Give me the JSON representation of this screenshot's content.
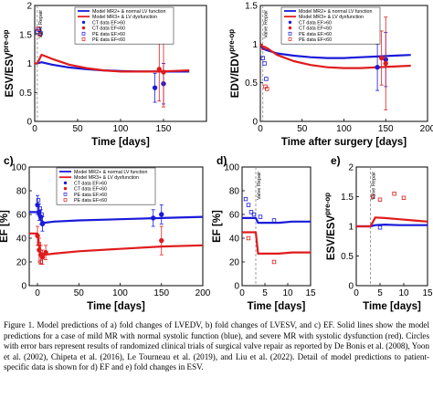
{
  "colors": {
    "blue": "#1a1ad9",
    "red": "#e01b1b",
    "grey_band": "#f3c9c9",
    "axis": "#000000"
  },
  "caption": "Figure 1. Model predictions of a) fold changes of LVEDV, b) fold changes of LVESV, and c) EF. Solid lines show the model predictions for a case of mild MR with normal systolic function (blue), and severe MR with systolic dysfunction (red). Circles with error bars represent results of randomized clinical trials of surgical valve repair as reported by De Bonis et al. (2008), Yoon et al. (2002), Chipeta et al. (2016), Le Tourneau et al. (2019), and Liu et al. (2022). Detail of model predictions to patient-specific data is shown for d) EF and e) fold changes in ESV.",
  "chart_data": [
    {
      "id": "a",
      "type": "line",
      "panel_label": "",
      "xlabel": "Time [days]",
      "ylabel": "ESV/ESV",
      "ylabel_sub": "pre-op",
      "xlim": [
        0,
        200
      ],
      "ylim": [
        0,
        2
      ],
      "xticks": [
        0,
        50,
        100,
        150
      ],
      "yticks": [
        0,
        0.5,
        1,
        1.5,
        2
      ],
      "ytick_labels": [
        "0",
        "0.5",
        "1",
        "1.5",
        "2"
      ],
      "vline": {
        "x": 3,
        "label": "Valve Repair"
      },
      "legend": [
        "Model MR2+ & normal LV function",
        "Model MR3+ & LV dysfunction",
        "CT data EF>60",
        "CT data EF<60",
        "PE data EF>60",
        "PE data EF<60"
      ],
      "series": [
        {
          "name": "Model MR2+ & normal LV function",
          "color": "blue",
          "kind": "line",
          "x": [
            0,
            3,
            8,
            20,
            40,
            60,
            80,
            100,
            120,
            140,
            160,
            180
          ],
          "y": [
            1.0,
            1.0,
            1.02,
            0.98,
            0.93,
            0.9,
            0.88,
            0.87,
            0.86,
            0.86,
            0.86,
            0.86
          ]
        },
        {
          "name": "Model MR3+ & LV dysfunction",
          "color": "red",
          "kind": "line",
          "x": [
            0,
            3,
            8,
            20,
            40,
            60,
            80,
            100,
            120,
            140,
            160,
            180
          ],
          "y": [
            1.0,
            1.0,
            1.15,
            1.08,
            0.98,
            0.92,
            0.88,
            0.86,
            0.86,
            0.86,
            0.87,
            0.88
          ]
        },
        {
          "name": "CT data EF>60",
          "color": "blue",
          "kind": "points",
          "marker": "filled",
          "x": [
            140,
            150
          ],
          "y": [
            0.58,
            0.65
          ],
          "err": [
            0.25,
            0.35
          ]
        },
        {
          "name": "CT data EF<60",
          "color": "red",
          "kind": "points",
          "marker": "filled",
          "x": [
            145,
            150
          ],
          "y": [
            0.9,
            0.85
          ],
          "err": [
            0.55,
            0.6
          ]
        },
        {
          "name": "PE data EF>60",
          "color": "blue",
          "kind": "points",
          "marker": "open",
          "x": [
            3,
            5,
            7
          ],
          "y": [
            1.55,
            1.58,
            1.52
          ]
        },
        {
          "name": "PE data EF<60",
          "color": "red",
          "kind": "points",
          "marker": "open",
          "x": [
            4,
            6
          ],
          "y": [
            1.6,
            1.5
          ]
        }
      ]
    },
    {
      "id": "b",
      "type": "line",
      "panel_label": "",
      "xlabel": "Time after surgery [days]",
      "ylabel": "EDV/EDV",
      "ylabel_sub": "pre-op",
      "xlim": [
        0,
        200
      ],
      "ylim": [
        0,
        1.5
      ],
      "xticks": [
        0,
        50,
        100,
        150,
        200
      ],
      "yticks": [
        0,
        0.5,
        1,
        1.5
      ],
      "ytick_labels": [
        "0",
        "0.5",
        "1",
        "1.5"
      ],
      "vline": {
        "x": 3,
        "label": "Valve Repair"
      },
      "legend": [
        "Model MR2+ & normal LV function",
        "Model MR3+ & LV dysfunction",
        "CT data EF>60",
        "CT data EF<60",
        "PE data EF>60",
        "PE data EF<60"
      ],
      "series": [
        {
          "name": "Model MR2+ & normal LV function",
          "color": "blue",
          "kind": "line",
          "x": [
            0,
            3,
            8,
            20,
            40,
            60,
            80,
            100,
            120,
            140,
            160,
            180
          ],
          "y": [
            1.0,
            0.94,
            0.92,
            0.88,
            0.85,
            0.83,
            0.82,
            0.82,
            0.83,
            0.84,
            0.85,
            0.86
          ]
        },
        {
          "name": "Model MR3+ & LV dysfunction",
          "color": "red",
          "kind": "line",
          "x": [
            0,
            3,
            8,
            20,
            40,
            60,
            80,
            100,
            120,
            140,
            160,
            180
          ],
          "y": [
            1.0,
            0.97,
            0.95,
            0.86,
            0.78,
            0.73,
            0.7,
            0.69,
            0.69,
            0.7,
            0.71,
            0.72
          ]
        },
        {
          "name": "CT data EF>60",
          "color": "blue",
          "kind": "points",
          "marker": "filled",
          "x": [
            140,
            150
          ],
          "y": [
            0.7,
            0.8
          ],
          "err": [
            0.3,
            0.35
          ]
        },
        {
          "name": "CT data EF<60",
          "color": "red",
          "kind": "points",
          "marker": "filled",
          "x": [
            145,
            150
          ],
          "y": [
            0.82,
            0.75
          ],
          "err": [
            0.35,
            0.6
          ]
        },
        {
          "name": "PE data EF>60",
          "color": "blue",
          "kind": "points",
          "marker": "open",
          "x": [
            3,
            5,
            7
          ],
          "y": [
            0.82,
            0.75,
            0.55
          ]
        },
        {
          "name": "PE data EF<60",
          "color": "red",
          "kind": "points",
          "marker": "open",
          "x": [
            4,
            6,
            8
          ],
          "y": [
            0.95,
            0.45,
            0.42
          ]
        }
      ]
    },
    {
      "id": "c",
      "type": "line",
      "panel_label": "c)",
      "xlabel": "Time [days]",
      "ylabel": "EF [%]",
      "ylabel_sub": "",
      "xlim": [
        -10,
        200
      ],
      "ylim": [
        0,
        100
      ],
      "xticks": [
        0,
        50,
        100,
        150,
        200
      ],
      "yticks": [
        0,
        20,
        40,
        60,
        80,
        100
      ],
      "ytick_labels": [
        "0",
        "20",
        "40",
        "60",
        "80",
        "100"
      ],
      "vline": null,
      "legend": [
        "Model MR2+ & normal LV function",
        "Model MR3+ & LV dysfunction",
        "CT data EF>60",
        "CT data EF<60",
        "PE data EF>60",
        "PE data EF<60"
      ],
      "series": [
        {
          "name": "Model MR2+ & normal LV function",
          "color": "blue",
          "kind": "line",
          "x": [
            -10,
            0,
            3,
            8,
            20,
            50,
            100,
            150,
            200
          ],
          "y": [
            62,
            62,
            56,
            53,
            54,
            55,
            56,
            57,
            58
          ]
        },
        {
          "name": "Model MR3+ & LV dysfunction",
          "color": "red",
          "kind": "line",
          "x": [
            -10,
            0,
            3,
            8,
            20,
            50,
            100,
            150,
            200
          ],
          "y": [
            44,
            44,
            28,
            26,
            27,
            29,
            31,
            33,
            34
          ]
        },
        {
          "name": "CT data EF>60",
          "color": "blue",
          "kind": "points",
          "marker": "filled",
          "x": [
            0,
            2,
            4,
            6,
            140,
            150
          ],
          "y": [
            68,
            62,
            58,
            52,
            57,
            60
          ],
          "err": [
            8,
            7,
            6,
            6,
            7,
            8
          ]
        },
        {
          "name": "CT data EF<60",
          "color": "red",
          "kind": "points",
          "marker": "filled",
          "x": [
            0,
            2,
            4,
            6,
            10,
            150
          ],
          "y": [
            42,
            30,
            26,
            24,
            28,
            38
          ],
          "err": [
            8,
            10,
            8,
            6,
            6,
            12
          ]
        },
        {
          "name": "PE data EF>60",
          "color": "blue",
          "kind": "points",
          "marker": "open",
          "x": [
            1,
            3,
            5
          ],
          "y": [
            72,
            65,
            60
          ]
        },
        {
          "name": "PE data EF<60",
          "color": "red",
          "kind": "points",
          "marker": "open",
          "x": [
            2,
            4
          ],
          "y": [
            35,
            20
          ]
        }
      ]
    },
    {
      "id": "d",
      "type": "line",
      "panel_label": "d)",
      "xlabel": "Time [days]",
      "ylabel": "EF [%]",
      "ylabel_sub": "",
      "xlim": [
        0,
        15
      ],
      "ylim": [
        0,
        100
      ],
      "xticks": [
        0,
        5,
        10,
        15
      ],
      "yticks": [
        0,
        20,
        40,
        60,
        80,
        100
      ],
      "ytick_labels": [
        "0",
        "20",
        "40",
        "60",
        "80",
        "100"
      ],
      "vline": {
        "x": 3,
        "label": "Valve Repair"
      },
      "legend": [],
      "series": [
        {
          "name": "",
          "color": "blue",
          "kind": "line",
          "x": [
            0,
            3,
            3.5,
            5,
            8,
            11,
            15
          ],
          "y": [
            57,
            57,
            53,
            53,
            53,
            54,
            54
          ]
        },
        {
          "name": "",
          "color": "red",
          "kind": "line",
          "x": [
            0,
            3,
            3.5,
            5,
            8,
            11,
            15
          ],
          "y": [
            45,
            45,
            27,
            27,
            27,
            28,
            28
          ]
        },
        {
          "name": "",
          "color": "blue",
          "kind": "points",
          "marker": "open",
          "x": [
            0.8,
            1.4,
            2.0,
            2.6,
            4.0,
            7.0
          ],
          "y": [
            73,
            68,
            62,
            60,
            58,
            55
          ]
        },
        {
          "name": "",
          "color": "red",
          "kind": "points",
          "marker": "open",
          "x": [
            1.4,
            7.0
          ],
          "y": [
            40,
            20
          ]
        }
      ]
    },
    {
      "id": "e",
      "type": "line",
      "panel_label": "e)",
      "xlabel": "Time [days]",
      "ylabel": "ESV/ESV",
      "ylabel_sub": "pre-op",
      "xlim": [
        0,
        15
      ],
      "ylim": [
        0,
        2
      ],
      "xticks": [
        0,
        5,
        10,
        15
      ],
      "yticks": [
        0,
        0.5,
        1,
        1.5,
        2
      ],
      "ytick_labels": [
        "0",
        "0.5",
        "1",
        "1.5",
        "2"
      ],
      "vline": {
        "x": 3,
        "label": "Valve Repair"
      },
      "legend": [],
      "series": [
        {
          "name": "",
          "color": "blue",
          "kind": "line",
          "x": [
            0,
            3,
            4,
            6,
            9,
            12,
            15
          ],
          "y": [
            1.0,
            1.0,
            1.02,
            1.03,
            1.02,
            1.02,
            1.02
          ]
        },
        {
          "name": "",
          "color": "red",
          "kind": "line",
          "x": [
            0,
            3,
            4,
            6,
            9,
            12,
            15
          ],
          "y": [
            1.0,
            1.0,
            1.15,
            1.14,
            1.12,
            1.1,
            1.08
          ]
        },
        {
          "name": "",
          "color": "blue",
          "kind": "points",
          "marker": "open",
          "x": [
            5.0
          ],
          "y": [
            0.98
          ]
        },
        {
          "name": "",
          "color": "red",
          "kind": "points",
          "marker": "open",
          "x": [
            3.5,
            5.0,
            8.0,
            10.0
          ],
          "y": [
            1.5,
            1.45,
            1.55,
            1.48
          ]
        }
      ]
    }
  ]
}
